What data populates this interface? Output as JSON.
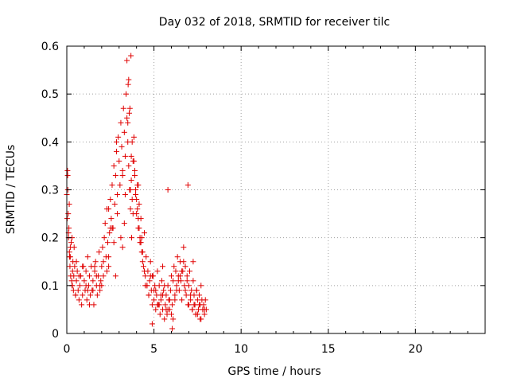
{
  "chart_data": {
    "type": "scatter",
    "title": "Day 032 of 2018, SRMTID for receiver tilc",
    "xlabel": "GPS time / hours",
    "ylabel": "SRMTID / TECUs",
    "xlim": [
      0,
      24
    ],
    "ylim": [
      0,
      0.6
    ],
    "xticks": [
      0,
      5,
      10,
      15,
      20
    ],
    "yticks": [
      0,
      0.1,
      0.2,
      0.3,
      0.4,
      0.5,
      0.6
    ],
    "grid": true,
    "marker": "plus",
    "color": "#e00000",
    "series": [
      {
        "x": [
          0.0,
          0.05,
          0.08,
          0.1,
          0.12,
          0.15,
          0.18,
          0.2,
          0.22,
          0.25,
          0.28,
          0.3,
          0.33,
          0.35,
          0.38,
          0.4,
          0.45,
          0.5,
          0.55,
          0.6,
          0.65,
          0.7,
          0.75,
          0.8,
          0.85,
          0.9,
          0.95,
          1.0,
          1.05,
          1.1,
          1.15,
          1.2,
          1.25,
          1.3,
          1.35,
          1.4,
          1.45,
          1.5,
          1.55,
          1.6,
          1.65,
          1.7,
          1.75,
          1.8,
          1.85,
          1.9,
          1.95,
          2.0,
          2.05,
          2.1,
          2.15,
          2.2,
          2.25,
          2.3,
          2.35,
          2.4,
          2.45,
          2.5,
          2.55,
          2.6,
          2.65,
          2.7,
          2.75,
          2.8,
          2.85,
          2.9,
          2.95,
          3.0,
          3.05,
          3.1,
          3.15,
          3.2,
          3.25,
          3.3,
          3.35,
          3.4,
          3.45,
          3.5,
          3.55,
          3.6,
          3.65,
          3.7,
          3.75,
          3.8,
          3.85,
          3.9,
          3.95,
          4.0,
          4.05,
          4.1,
          4.15,
          4.2,
          4.25,
          4.3,
          4.35,
          4.4,
          4.45,
          4.5,
          4.55,
          4.6,
          4.65,
          4.7,
          4.75,
          4.8,
          4.85,
          4.9,
          4.95,
          5.0,
          5.05,
          5.1,
          5.15,
          5.2,
          5.25,
          5.3,
          5.35,
          5.4,
          5.45,
          5.5,
          5.55,
          5.6,
          5.65,
          5.7,
          5.75,
          5.8,
          5.85,
          5.9,
          5.95,
          6.0,
          6.05,
          6.1,
          6.15,
          6.2,
          6.25,
          6.3,
          6.35,
          6.4,
          6.45,
          6.5,
          6.55,
          6.6,
          6.65,
          6.7,
          6.75,
          6.8,
          6.85,
          6.9,
          6.95,
          7.0,
          7.05,
          7.1,
          7.15,
          7.2,
          7.25,
          7.3,
          7.35,
          7.4,
          7.45,
          7.5,
          7.55,
          7.6,
          7.65,
          7.7,
          7.75,
          7.8,
          7.85,
          7.9,
          7.95,
          8.0,
          0.02,
          0.06,
          0.1,
          0.14,
          0.2,
          0.3,
          0.42,
          0.55,
          0.7,
          0.9,
          1.1,
          1.3,
          1.5,
          1.7,
          1.9,
          2.1,
          2.3,
          2.5,
          2.7,
          2.9,
          3.1,
          3.3,
          3.45,
          3.52,
          3.58,
          3.65,
          3.72,
          3.8,
          3.9,
          4.0,
          4.1,
          4.2,
          4.3,
          4.45,
          4.6,
          4.8,
          5.0,
          5.2,
          5.4,
          5.6,
          5.8,
          6.0,
          6.2,
          6.4,
          6.6,
          6.8,
          7.0,
          7.2,
          7.4,
          7.6,
          7.8,
          0.04,
          0.16,
          0.32,
          0.5,
          0.8,
          1.2,
          1.6,
          2.0,
          2.4,
          2.8,
          3.2,
          3.55,
          3.62,
          3.75,
          3.85,
          3.95,
          4.05,
          4.15,
          4.25,
          4.35,
          4.5,
          4.7,
          4.9,
          5.1,
          5.3,
          5.5,
          5.7,
          5.9,
          6.1,
          6.3,
          6.5,
          6.7,
          6.9,
          7.1,
          7.3,
          7.5,
          7.7,
          7.9,
          3.68,
          3.5,
          3.7,
          4.1,
          3.35,
          3.2,
          2.85,
          2.6,
          2.4,
          6.05,
          6.95,
          5.5,
          4.9,
          5.8,
          7.25,
          7.45,
          7.65
        ],
        "y": [
          0.29,
          0.33,
          0.25,
          0.2,
          0.22,
          0.17,
          0.14,
          0.18,
          0.12,
          0.19,
          0.11,
          0.1,
          0.13,
          0.15,
          0.09,
          0.12,
          0.14,
          0.08,
          0.11,
          0.13,
          0.09,
          0.07,
          0.1,
          0.12,
          0.06,
          0.08,
          0.14,
          0.11,
          0.09,
          0.13,
          0.07,
          0.16,
          0.1,
          0.12,
          0.08,
          0.14,
          0.09,
          0.11,
          0.06,
          0.13,
          0.15,
          0.1,
          0.08,
          0.12,
          0.17,
          0.09,
          0.11,
          0.14,
          0.18,
          0.12,
          0.2,
          0.23,
          0.16,
          0.26,
          0.19,
          0.14,
          0.21,
          0.28,
          0.24,
          0.31,
          0.22,
          0.35,
          0.27,
          0.33,
          0.38,
          0.29,
          0.41,
          0.36,
          0.31,
          0.44,
          0.39,
          0.33,
          0.47,
          0.42,
          0.37,
          0.5,
          0.45,
          0.4,
          0.35,
          0.3,
          0.26,
          0.32,
          0.28,
          0.36,
          0.41,
          0.33,
          0.29,
          0.25,
          0.31,
          0.22,
          0.27,
          0.19,
          0.24,
          0.2,
          0.17,
          0.14,
          0.21,
          0.12,
          0.16,
          0.1,
          0.13,
          0.08,
          0.11,
          0.15,
          0.09,
          0.06,
          0.12,
          0.07,
          0.1,
          0.05,
          0.08,
          0.13,
          0.06,
          0.1,
          0.04,
          0.07,
          0.11,
          0.05,
          0.09,
          0.03,
          0.06,
          0.08,
          0.04,
          0.1,
          0.07,
          0.05,
          0.09,
          0.12,
          0.06,
          0.11,
          0.14,
          0.08,
          0.13,
          0.1,
          0.16,
          0.12,
          0.09,
          0.15,
          0.11,
          0.07,
          0.13,
          0.18,
          0.1,
          0.14,
          0.08,
          0.12,
          0.06,
          0.1,
          0.13,
          0.07,
          0.09,
          0.05,
          0.11,
          0.08,
          0.06,
          0.04,
          0.09,
          0.07,
          0.05,
          0.08,
          0.06,
          0.1,
          0.07,
          0.05,
          0.06,
          0.04,
          0.07,
          0.05,
          0.24,
          0.3,
          0.21,
          0.27,
          0.16,
          0.2,
          0.18,
          0.15,
          0.12,
          0.14,
          0.1,
          0.06,
          0.09,
          0.12,
          0.1,
          0.15,
          0.13,
          0.22,
          0.19,
          0.25,
          0.2,
          0.23,
          0.57,
          0.52,
          0.46,
          0.3,
          0.2,
          0.25,
          0.34,
          0.28,
          0.24,
          0.2,
          0.17,
          0.13,
          0.1,
          0.12,
          0.09,
          0.06,
          0.08,
          0.1,
          0.05,
          0.04,
          0.07,
          0.11,
          0.13,
          0.09,
          0.06,
          0.05,
          0.04,
          0.06,
          0.05,
          0.34,
          0.16,
          0.1,
          0.08,
          0.12,
          0.09,
          0.14,
          0.1,
          0.16,
          0.12,
          0.18,
          0.53,
          0.47,
          0.4,
          0.36,
          0.3,
          0.26,
          0.22,
          0.19,
          0.15,
          0.1,
          0.08,
          0.12,
          0.09,
          0.06,
          0.08,
          0.05,
          0.07,
          0.03,
          0.09,
          0.12,
          0.15,
          0.11,
          0.08,
          0.06,
          0.04,
          0.03,
          0.05,
          0.58,
          0.44,
          0.37,
          0.31,
          0.29,
          0.34,
          0.4,
          0.22,
          0.26,
          0.01,
          0.31,
          0.14,
          0.02,
          0.3,
          0.15,
          0.09,
          0.03
        ]
      }
    ]
  }
}
